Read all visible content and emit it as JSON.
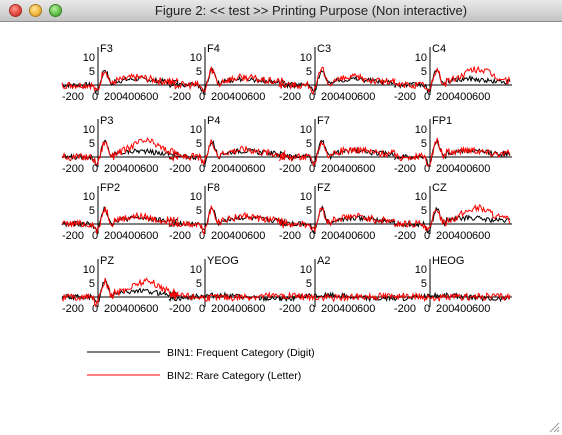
{
  "window": {
    "title": "Figure 2: << test >>  Printing Purpose (Non interactive)"
  },
  "icons": {
    "close": "close-icon",
    "minimize": "minimize-icon",
    "zoom": "zoom-icon",
    "resize": "resize-grip-icon"
  },
  "colors": {
    "bin1": "#000000",
    "bin2": "#ff0000"
  },
  "chart_data": {
    "type": "line",
    "ylim": [
      -2,
      10
    ],
    "xlim": [
      -200,
      800
    ],
    "y_ticks": [
      "10",
      "5"
    ],
    "x_tick_labels": [
      "-200",
      "0",
      "200",
      "400",
      "600"
    ],
    "grid": false,
    "legend_placement": "bottom-left",
    "channels": [
      "F3",
      "F4",
      "C3",
      "C4",
      "P3",
      "P4",
      "F7",
      "FP1",
      "FP2",
      "F8",
      "FZ",
      "CZ",
      "PZ",
      "YEOG",
      "A2",
      "HEOG"
    ],
    "series": [
      {
        "name": "BIN1: Frequent Category (Digit)",
        "color": "#000000"
      },
      {
        "name": "BIN2: Rare Category (Letter)",
        "color": "#ff0000"
      }
    ]
  },
  "legend": {
    "bin1": "BIN1: Frequent Category (Digit)",
    "bin2": "BIN2: Rare Category (Letter)"
  }
}
